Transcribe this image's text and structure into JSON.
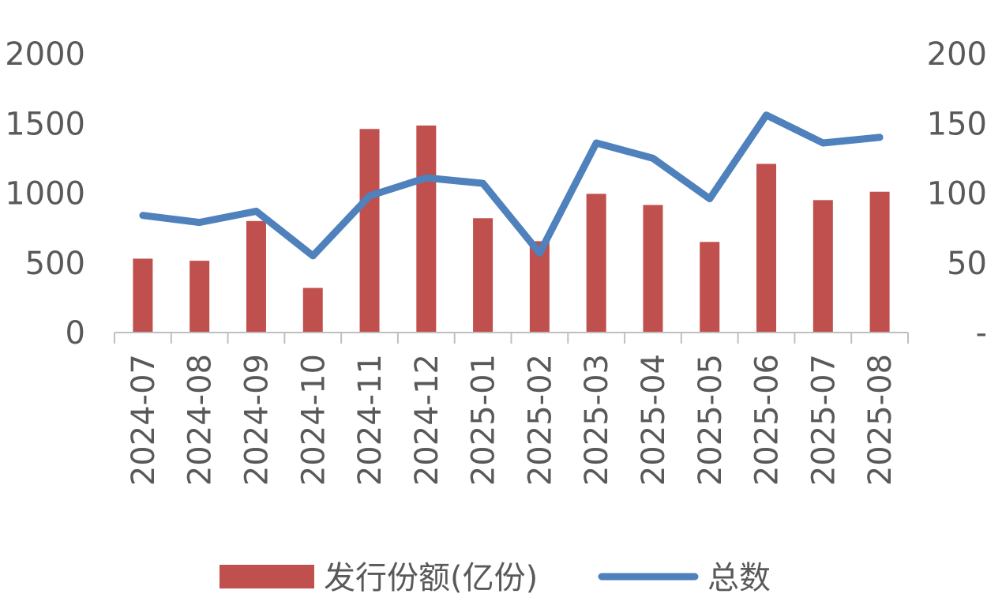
{
  "chart_data": {
    "type": "bar",
    "categories": [
      "2024-07",
      "2024-08",
      "2024-09",
      "2024-10",
      "2024-11",
      "2024-12",
      "2025-01",
      "2025-02",
      "2025-03",
      "2025-04",
      "2025-05",
      "2025-06",
      "2025-07",
      "2025-08"
    ],
    "series": [
      {
        "name": "发行份额(亿份)",
        "type": "bar",
        "axis": "left",
        "color": "#c0504d",
        "values": [
          530,
          515,
          800,
          320,
          1460,
          1485,
          820,
          655,
          995,
          915,
          650,
          1210,
          950,
          1010
        ]
      },
      {
        "name": "总数",
        "type": "line",
        "axis": "right",
        "color": "#4f81bd",
        "values": [
          84,
          79,
          87,
          55,
          98,
          111,
          107,
          57,
          136,
          125,
          96,
          156,
          136,
          140
        ]
      }
    ],
    "left_axis": {
      "ylim": [
        0,
        2000
      ],
      "ticks": [
        0,
        500,
        1000,
        1500,
        2000
      ],
      "tick_labels": [
        "0",
        "500",
        "1000",
        "1500",
        "2000"
      ]
    },
    "right_axis": {
      "ylim": [
        0,
        200
      ],
      "ticks": [
        0,
        50,
        100,
        150,
        200
      ],
      "tick_labels": [
        "-",
        "50",
        "100",
        "150",
        "200"
      ]
    },
    "grid": false,
    "legend_position": "bottom"
  }
}
